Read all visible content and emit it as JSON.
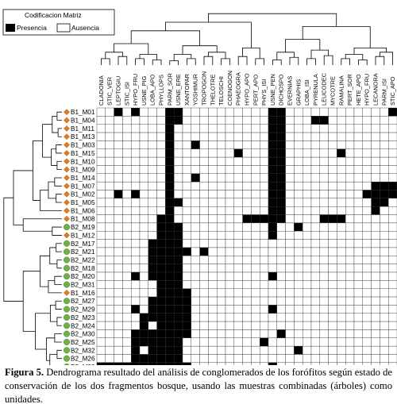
{
  "legend": {
    "title": "Codificacion Matriz",
    "presence_label": "Presencia",
    "absence_label": "Ausencia"
  },
  "columns": [
    "CLADONIA",
    "STIC_VER",
    "LEPTOGIU",
    "STIC_ISI",
    "HYPO_FRU",
    "USNE_PIG",
    "LOBA_APO",
    "PHYLLOPS",
    "PARM_SOR",
    "USNE_ERE",
    "XANTOPAR",
    "YOSHIMUR",
    "TROPOGON",
    "THELOTRE",
    "TELOSCHI",
    "COENOGON",
    "PHAEOGRA",
    "HYPO_APO",
    "PERT_APO",
    "PHYS_ISI",
    "USNE_PEN",
    "DICHOSPO",
    "EVERNIAS",
    "GRAPHIS",
    "LOBA_ISI",
    "PYRENULA",
    "LEUCODEC",
    "MYCOTRE",
    "RAMALINA",
    "PERT_SOR",
    "HETE_APO",
    "HYPO_FRU",
    "LECANORA",
    "PARM_ISI",
    "STIC_APO"
  ],
  "rows": [
    {
      "label": "B1_M01",
      "group": "B1",
      "cells": "00101000110000000000110000000000001"
    },
    {
      "label": "B1_M04",
      "group": "B1",
      "cells": "00000000110000000000110001100000000"
    },
    {
      "label": "B1_M11",
      "group": "B1",
      "cells": "00000000100000000000110000000000000"
    },
    {
      "label": "B1_M13",
      "group": "B1",
      "cells": "00000000100000000000110000000000000"
    },
    {
      "label": "B1_M03",
      "group": "B1",
      "cells": "00000000100100000000110000000000000"
    },
    {
      "label": "B1_M15",
      "group": "B1",
      "cells": "00000000100000001000110000001000000"
    },
    {
      "label": "B1_M10",
      "group": "B1",
      "cells": "00000000100000000000110000000000000"
    },
    {
      "label": "B1_M09",
      "group": "B1",
      "cells": "00000000100000000000110000000000000"
    },
    {
      "label": "B1_M14",
      "group": "B1",
      "cells": "00000000100100000000110000000000000"
    },
    {
      "label": "B1_M07",
      "group": "B1",
      "cells": "00000000100000000000110000000000111"
    },
    {
      "label": "B1_M02",
      "group": "B1",
      "cells": "00101000100000000000110000000001111"
    },
    {
      "label": "B1_M05",
      "group": "B1",
      "cells": "00000000110000000000110000000000110"
    },
    {
      "label": "B1_M06",
      "group": "B1",
      "cells": "00000000100000000000110000000000100"
    },
    {
      "label": "B1_M08",
      "group": "B1",
      "cells": "00000001100000000111110000111000000"
    },
    {
      "label": "B2_M19",
      "group": "B2",
      "cells": "00000001110000000000100100000000000"
    },
    {
      "label": "B1_M12",
      "group": "B1",
      "cells": "00000001110000000000100000000000000"
    },
    {
      "label": "B2_M17",
      "group": "B2",
      "cells": "00000011110000000000000000000000000"
    },
    {
      "label": "B2_M21",
      "group": "B2",
      "cells": "00000011111010000000000000000000000"
    },
    {
      "label": "B2_M22",
      "group": "B2",
      "cells": "00000011110000000000000000000000000"
    },
    {
      "label": "B2_M18",
      "group": "B2",
      "cells": "00000011110000000000000000000000000"
    },
    {
      "label": "B2_M20",
      "group": "B2",
      "cells": "00001011110000000000100000000000000"
    },
    {
      "label": "B2_M31",
      "group": "B2",
      "cells": "00000001110000000000000000000000000"
    },
    {
      "label": "B1_M16",
      "group": "B1",
      "cells": "00000001111000000000000000000000000"
    },
    {
      "label": "B2_M27",
      "group": "B2",
      "cells": "00000011111000000000000000000000000"
    },
    {
      "label": "B2_M29",
      "group": "B2",
      "cells": "00001011111000000000100000000000000"
    },
    {
      "label": "B2_M23",
      "group": "B2",
      "cells": "00000111111000000000000000000000000"
    },
    {
      "label": "B2_M24",
      "group": "B2",
      "cells": "00000101111000000000000000000000000"
    },
    {
      "label": "B2_M30",
      "group": "B2",
      "cells": "00001111111000000000010000000000000"
    },
    {
      "label": "B2_M25",
      "group": "B2",
      "cells": "00001111110000000001000000000000000"
    },
    {
      "label": "B2_M32",
      "group": "B2",
      "cells": "00001011110000000000000100000000000"
    },
    {
      "label": "B2_M26",
      "group": "B2",
      "cells": "00001111110000000000000000000000000"
    },
    {
      "label": "B2_M28",
      "group": "B2",
      "cells": "11111111111000000000100000000000000"
    }
  ],
  "colors": {
    "B1": "#e07b1f",
    "B2": "#6fb04a",
    "presence": "#000000",
    "absence": "#ffffff",
    "grid": "#333333"
  },
  "caption": {
    "label": "Figura 5.",
    "text": " Dendrograma resultado del análisis de conglomerados de los forófitos según estado de conservación de los dos fragmentos bosque, usando las muestras combinadas (árboles) como unidades."
  }
}
